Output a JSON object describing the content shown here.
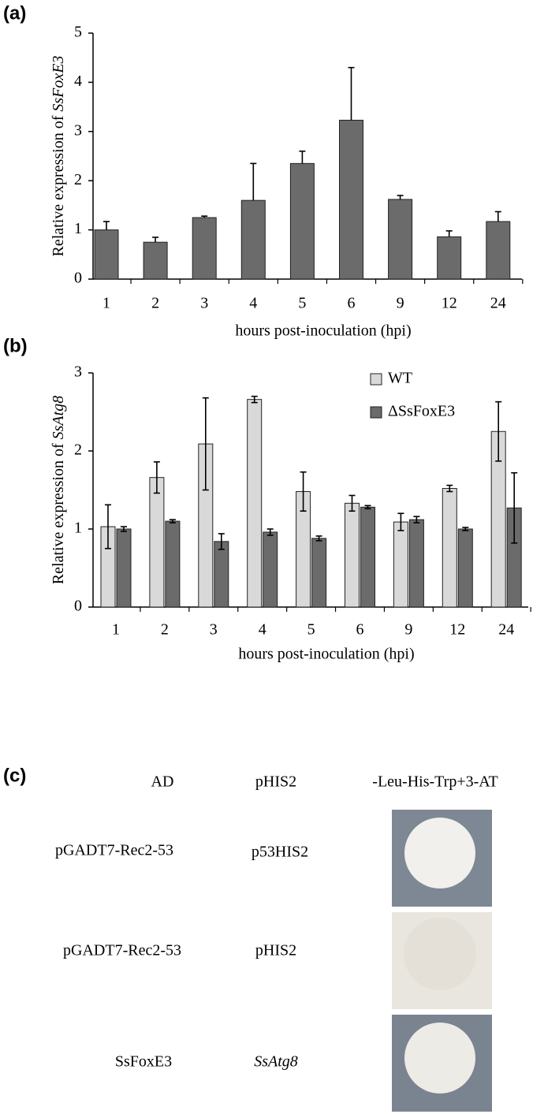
{
  "chart_data": [
    {
      "type": "bar",
      "label": "(a)",
      "ylabel": "Relative expression of",
      "ylabel_italic": "SsFoxE3",
      "xlabel": "hours post-inoculation (hpi)",
      "categories": [
        "1",
        "2",
        "3",
        "4",
        "5",
        "6",
        "9",
        "12",
        "24"
      ],
      "series": [
        {
          "name": null,
          "color": "#6b6b6b",
          "values": [
            1.0,
            0.75,
            1.25,
            1.6,
            2.35,
            3.23,
            1.62,
            0.86,
            1.17
          ],
          "errors": [
            0.17,
            0.1,
            0.03,
            0.75,
            0.25,
            1.07,
            0.08,
            0.12,
            0.2
          ]
        }
      ],
      "error_bars": "upper",
      "ylim": [
        0,
        5
      ],
      "yticks": [
        0,
        1,
        2,
        3,
        4,
        5
      ]
    },
    {
      "type": "bar",
      "label": "(b)",
      "ylabel": "Relative expression of",
      "ylabel_italic": "SsAtg8",
      "xlabel": "hours post-inoculation (hpi)",
      "categories": [
        "1",
        "2",
        "3",
        "4",
        "5",
        "6",
        "9",
        "12",
        "24"
      ],
      "series": [
        {
          "name": "WT",
          "color": "#d9d9d9",
          "values": [
            1.03,
            1.66,
            2.09,
            2.66,
            1.48,
            1.33,
            1.09,
            1.52,
            2.25
          ],
          "errors": [
            0.28,
            0.2,
            0.59,
            0.04,
            0.25,
            0.1,
            0.11,
            0.04,
            0.38
          ]
        },
        {
          "name": "ΔSsFoxE3",
          "color": "#6b6b6b",
          "values": [
            1.0,
            1.1,
            0.84,
            0.96,
            0.88,
            1.28,
            1.12,
            1.0,
            1.27
          ],
          "errors": [
            0.03,
            0.02,
            0.1,
            0.04,
            0.03,
            0.02,
            0.04,
            0.02,
            0.45
          ]
        }
      ],
      "error_bars": "both",
      "ylim": [
        0,
        3
      ],
      "yticks": [
        0,
        1,
        2,
        3
      ],
      "legend": "top-right"
    }
  ],
  "panel_c": {
    "label": "(c)",
    "headers": [
      "AD",
      "pHIS2",
      "-Leu-His-Trp+3-AT"
    ],
    "rows": [
      [
        "pGADT7-Rec2-53",
        "p53HIS2"
      ],
      [
        "pGADT7-Rec2-53",
        "pHIS2"
      ],
      [
        "SsFoxE3",
        "SsAtg8"
      ]
    ]
  }
}
